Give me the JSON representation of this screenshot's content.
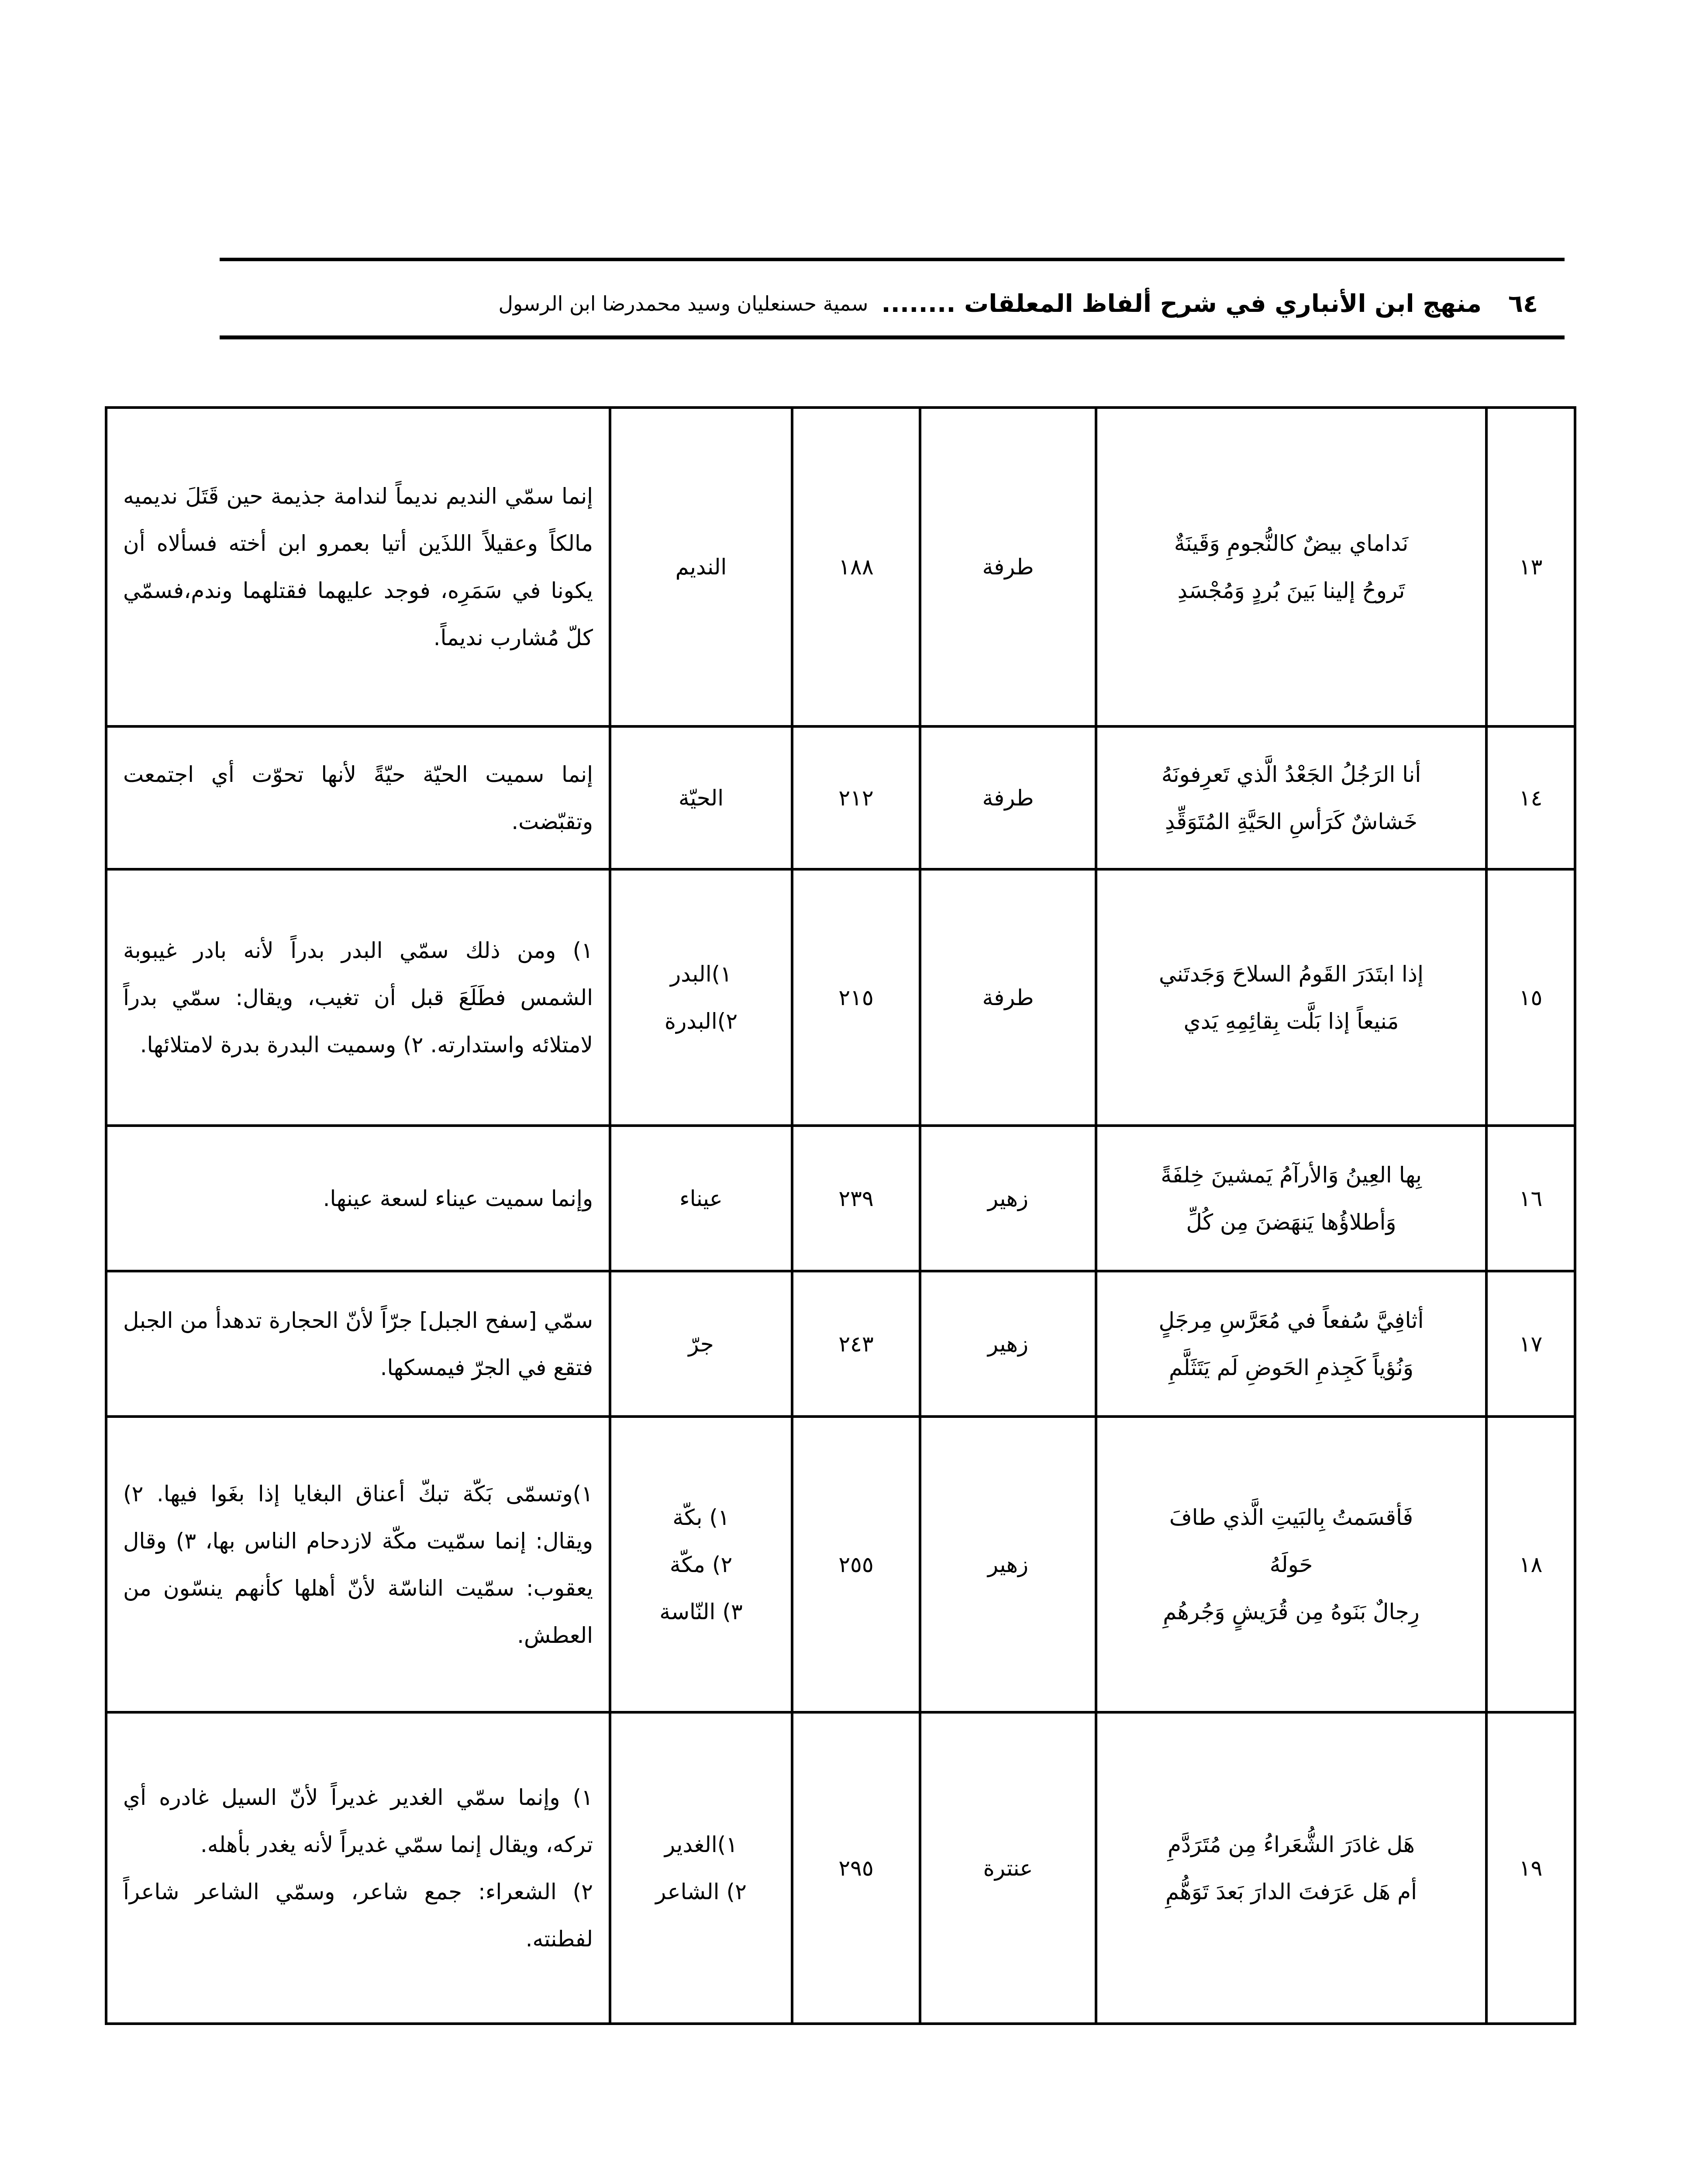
{
  "header": {
    "page_number": "٦٤",
    "title": "منهج ابن الأنباري في شرح ألفاظ المعلقات ........",
    "authors": "سمية حسنعليان وسيد محمدرضا ابن الرسول"
  },
  "rows": [
    {
      "index": "١٣",
      "verse": [
        "نَداماي بيضٌ كالنُّجومِ وَقَينَةٌ",
        "تَروحُ إلينا بَينَ بُردٍ وَمُجْسَدِ"
      ],
      "poet": "طرفة",
      "number": "١٨٨",
      "word": [
        "النديم"
      ],
      "explanation": "إنما سمّي النديم نديماً لندامة جذيمة حين قَتَلَ نديميه مالكاً وعقيلاً اللذَين أتيا بعمرو ابن أخته فسألاه أن يكونا في سَمَرِه، فوجد عليهما فقتلهما وندم،فسمّي كلّ مُشارب نديماً."
    },
    {
      "index": "١٤",
      "verse": [
        "أنا الرَجُلُ الجَعْدُ الَّذي تَعرِفونَهُ",
        "خَشاشٌ كَرَأسِ الحَيَّةِ المُتَوَقِّدِ"
      ],
      "poet": "طرفة",
      "number": "٢١٢",
      "word": [
        "الحيّة"
      ],
      "explanation": "إنما سميت الحيّة حيّةً لأنها تحوّت أي اجتمعت وتقبّضت."
    },
    {
      "index": "١٥",
      "verse": [
        "إذا ابتَدَرَ القَومُ السلاحَ وَجَدتَني",
        "مَنيعاً إذا بَلَّت بِقائِمِهِ يَدي"
      ],
      "poet": "طرفة",
      "number": "٢١٥",
      "word": [
        "١)البدر",
        "٢)البدرة"
      ],
      "explanation": "١) ومن ذلك سمّي البدر بدراً لأنه بادر غيبوبة الشمس فطَلَعَ قبل أن تغيب، ويقال: سمّي بدراً لامتلائه واستدارته. ٢) وسميت البدرة بدرة لامتلائها."
    },
    {
      "index": "١٦",
      "verse": [
        "بِها العِينُ وَالأرآمُ يَمشينَ خِلفَةً",
        "وَأطلاؤُها يَنهَضنَ مِن كُلِّ"
      ],
      "poet": "زهير",
      "number": "٢٣٩",
      "word": [
        "عيناء"
      ],
      "explanation": "وإنما سميت عيناء لسعة عينها."
    },
    {
      "index": "١٧",
      "verse": [
        "أثافِيَّ سُفعاً في مُعَرَّسِ مِرجَلٍ",
        "وَنُؤياً كَجِذمِ الحَوضِ لَم يَتَثَلَّمِ"
      ],
      "poet": "زهير",
      "number": "٢٤٣",
      "word": [
        "جرّ"
      ],
      "explanation": "سمّي [سفح الجبل] جرّاً لأنّ الحجارة تدهدأ من الجبل فتقع في الجرّ فيمسكها."
    },
    {
      "index": "١٨",
      "verse": [
        "فَأقسَمتُ بِالبَيتِ الَّذي طافَ",
        "حَولَهُ",
        "رِجالٌ بَنَوهُ مِن قُرَيشٍ وَجُرهُمِ"
      ],
      "poet": "زهير",
      "number": "٢٥٥",
      "word": [
        "١) بكّة",
        "٢) مكّة",
        "٣) النّاسة"
      ],
      "explanation": "١)وتسمّى بَكّة تبكّ أعناق البغايا إذا بغَوا فيها. ٢) ويقال: إنما سمّيت مكّة لازدحام الناس بها، ٣) وقال يعقوب: سمّيت الناسّة لأنّ أهلها كأنهم ينسّون من العطش."
    },
    {
      "index": "١٩",
      "verse": [
        "هَل غادَرَ الشُّعَراءُ مِن مُتَرَدَّمِ",
        "أم هَل عَرَفتَ الدارَ بَعدَ تَوَهُّمِ"
      ],
      "poet": "عنترة",
      "number": "٢٩٥",
      "word": [
        "١)الغدير",
        "٢) الشاعر"
      ],
      "explanation": "١) وإنما سمّي الغدير غديراً لأنّ السيل غادره أي تركه، ويقال إنما سمّي غديراً لأنه يغدر بأهله.",
      "explanation2": "٢) الشعراء: جمع شاعر، وسمّي الشاعر شاعراً لفطنته."
    }
  ]
}
